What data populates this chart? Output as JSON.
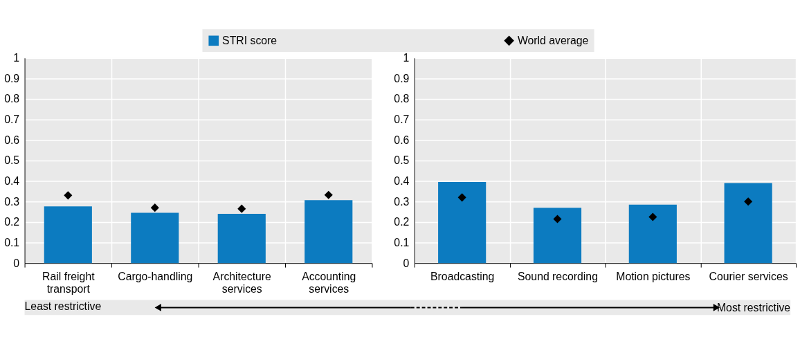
{
  "chart_data": [
    {
      "type": "bar",
      "categories": [
        "Rail freight transport",
        "Cargo-handling",
        "Architecture services",
        "Accounting services"
      ],
      "series": [
        {
          "name": "STRI score",
          "color": "#0c7bc0",
          "values": [
            0.276,
            0.245,
            0.24,
            0.307
          ]
        },
        {
          "name": "World average",
          "type": "scatter",
          "color": "#000000",
          "values": [
            0.33,
            0.27,
            0.265,
            0.332
          ]
        }
      ],
      "marker": "diamond",
      "ylim": [
        0,
        1
      ],
      "yticks": [
        0,
        0.1,
        0.2,
        0.3,
        0.4,
        0.5,
        0.6,
        0.7,
        0.8,
        0.9,
        1
      ],
      "grid": true,
      "legend": "top",
      "annotations": [
        "Least restrictive"
      ]
    },
    {
      "type": "bar",
      "categories": [
        "Broadcasting",
        "Sound recording",
        "Motion pictures",
        "Courier services"
      ],
      "series": [
        {
          "name": "STRI score",
          "color": "#0c7bc0",
          "values": [
            0.395,
            0.27,
            0.285,
            0.39
          ]
        },
        {
          "name": "World average",
          "type": "scatter",
          "color": "#000000",
          "values": [
            0.32,
            0.215,
            0.225,
            0.3
          ]
        }
      ],
      "marker": "diamond",
      "ylim": [
        0,
        1
      ],
      "yticks": [
        0,
        0.1,
        0.2,
        0.3,
        0.4,
        0.5,
        0.6,
        0.7,
        0.8,
        0.9,
        1
      ],
      "grid": true,
      "legend": "top",
      "annotations": [
        "Most restrictive"
      ]
    }
  ]
}
